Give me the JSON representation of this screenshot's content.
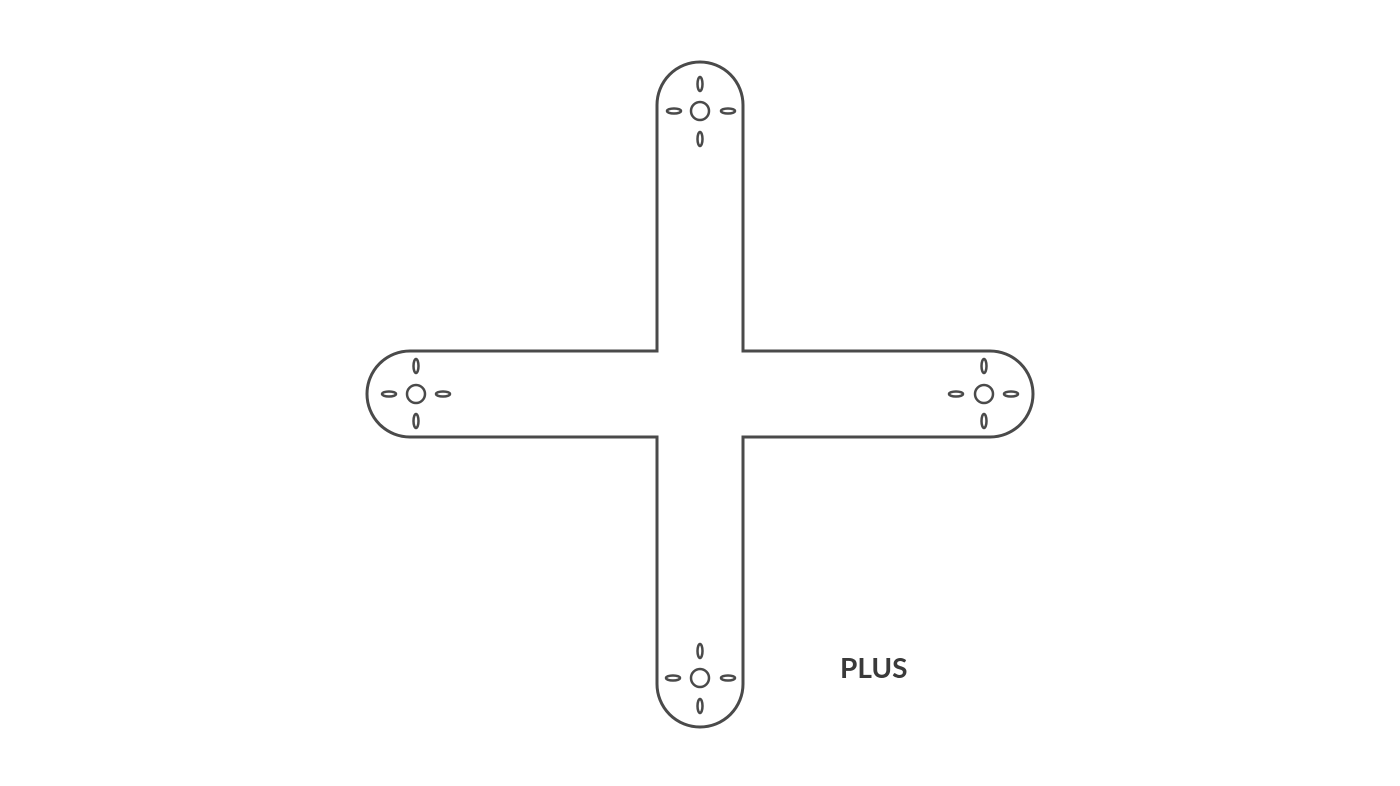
{
  "diagram": {
    "label": "PLUS",
    "colors": {
      "stroke": "#4a4a4a",
      "fill": "#ffffff",
      "label": "#3a3a3a"
    },
    "mounts": [
      "top",
      "right",
      "bottom",
      "left"
    ]
  }
}
